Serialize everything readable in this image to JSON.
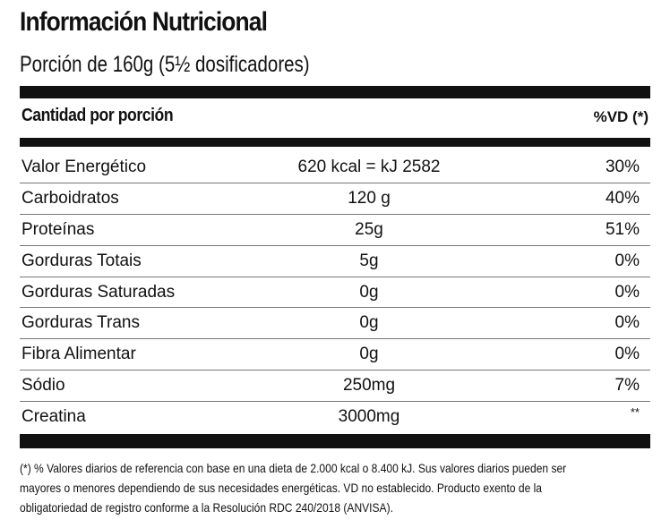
{
  "label": {
    "title": "Información Nutricional",
    "serving": "Porción de 160g (5½ dosificadores)",
    "header_left": "Cantidad por porción",
    "header_right": "%VD (*)"
  },
  "rows": [
    {
      "name": "Valor Energético",
      "amount": "620 kcal = kJ 2582",
      "dv": "30%"
    },
    {
      "name": "Carboidratos",
      "amount": "120 g",
      "dv": "40%"
    },
    {
      "name": "Proteínas",
      "amount": "25g",
      "dv": "51%"
    },
    {
      "name": "Gorduras Totais",
      "amount": "5g",
      "dv": "0%"
    },
    {
      "name": "Gorduras Saturadas",
      "amount": "0g",
      "dv": "0%"
    },
    {
      "name": "Gorduras Trans",
      "amount": "0g",
      "dv": "0%"
    },
    {
      "name": "Fibra Alimentar",
      "amount": "0g",
      "dv": "0%"
    },
    {
      "name": "Sódio",
      "amount": "250mg",
      "dv": "7%"
    },
    {
      "name": "Creatina",
      "amount": "3000mg",
      "dv": "**"
    }
  ],
  "footnote": [
    "(*) % Valores diarios de referencia con base en una dieta de 2.000 kcal o 8.400 kJ. Sus valores diarios pueden ser",
    "mayores o menores dependiendo de sus necesidades energéticas. VD no establecido. Producto exento de la",
    "obligatoriedad de registro conforme a la Resolución RDC 240/2018 (ANVISA)."
  ]
}
